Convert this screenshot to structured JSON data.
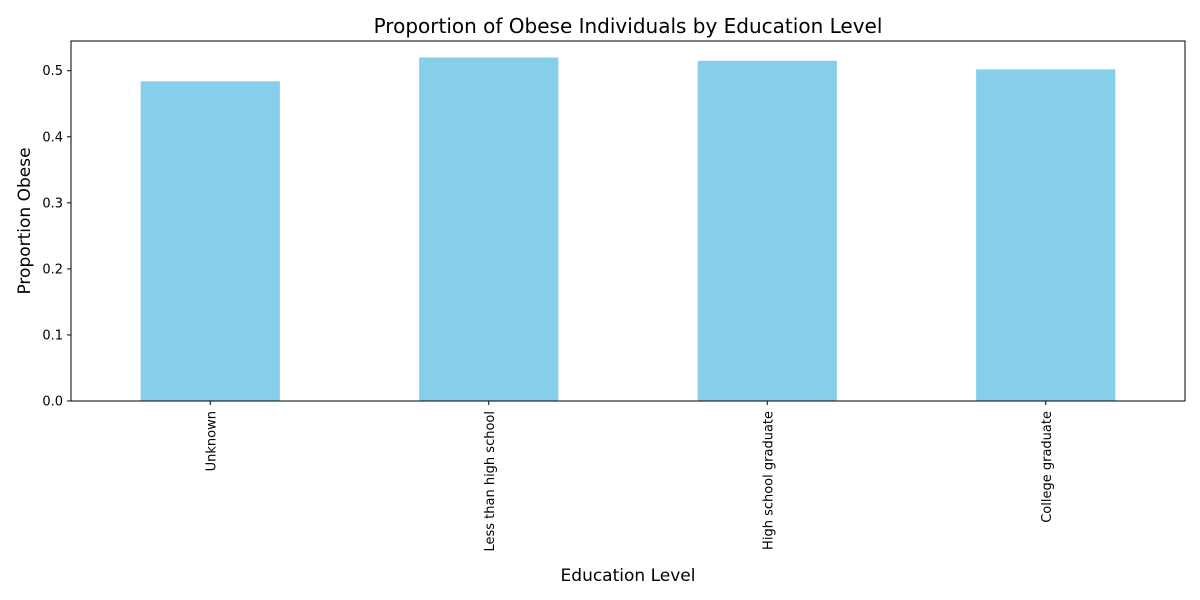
{
  "chart_data": {
    "type": "bar",
    "title": "Proportion of Obese Individuals by Education Level",
    "xlabel": "Education Level",
    "ylabel": "Proportion Obese",
    "categories": [
      "Unknown",
      "Less than high school",
      "High school graduate",
      "College graduate"
    ],
    "values": [
      0.484,
      0.52,
      0.515,
      0.502
    ],
    "ylim": [
      0,
      0.545
    ],
    "yticks": [
      0.0,
      0.1,
      0.2,
      0.3,
      0.4,
      0.5
    ],
    "ytick_labels": [
      "0.0",
      "0.1",
      "0.2",
      "0.3",
      "0.4",
      "0.5"
    ],
    "grid": false,
    "legend": "none",
    "bar_color": "#87ceeb",
    "x_tick_rotation": "vertical"
  }
}
